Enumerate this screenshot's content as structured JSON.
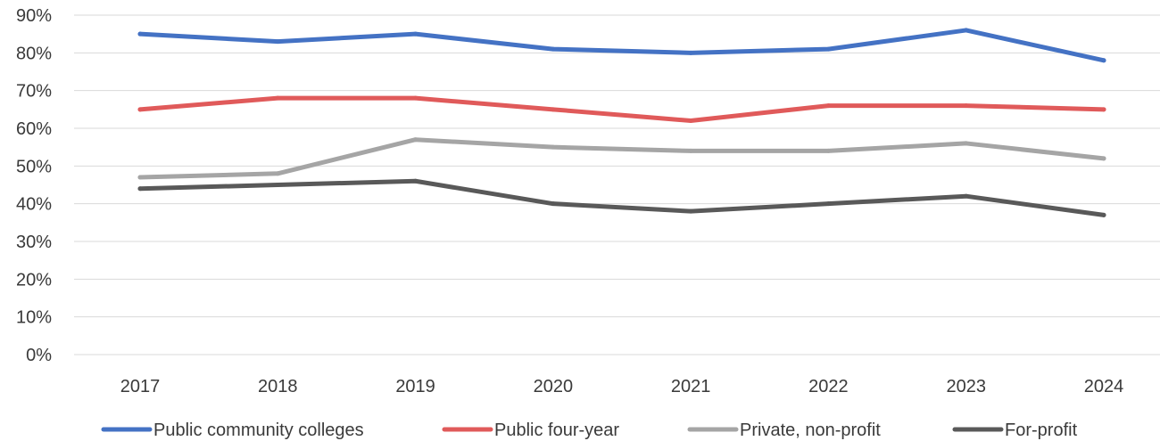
{
  "chart_data": {
    "type": "line",
    "title": "",
    "xlabel": "",
    "ylabel": "",
    "categories": [
      "2017",
      "2018",
      "2019",
      "2020",
      "2021",
      "2022",
      "2023",
      "2024"
    ],
    "ylim": [
      0,
      90
    ],
    "yticks": [
      "0%",
      "10%",
      "20%",
      "30%",
      "40%",
      "50%",
      "60%",
      "70%",
      "80%",
      "90%"
    ],
    "ytick_values": [
      0,
      10,
      20,
      30,
      40,
      50,
      60,
      70,
      80,
      90
    ],
    "grid": true,
    "legend_position": "bottom",
    "series": [
      {
        "name": "Public community colleges",
        "color": "#4472c4",
        "values": [
          85,
          83,
          85,
          81,
          80,
          81,
          86,
          78
        ]
      },
      {
        "name": "Public four-year",
        "color": "#e05a5a",
        "values": [
          65,
          68,
          68,
          65,
          62,
          66,
          66,
          65
        ]
      },
      {
        "name": "Private, non-profit",
        "color": "#a5a5a5",
        "values": [
          47,
          48,
          57,
          55,
          54,
          54,
          56,
          52
        ]
      },
      {
        "name": "For-profit",
        "color": "#595959",
        "values": [
          44,
          45,
          46,
          40,
          38,
          40,
          42,
          37
        ]
      }
    ]
  }
}
